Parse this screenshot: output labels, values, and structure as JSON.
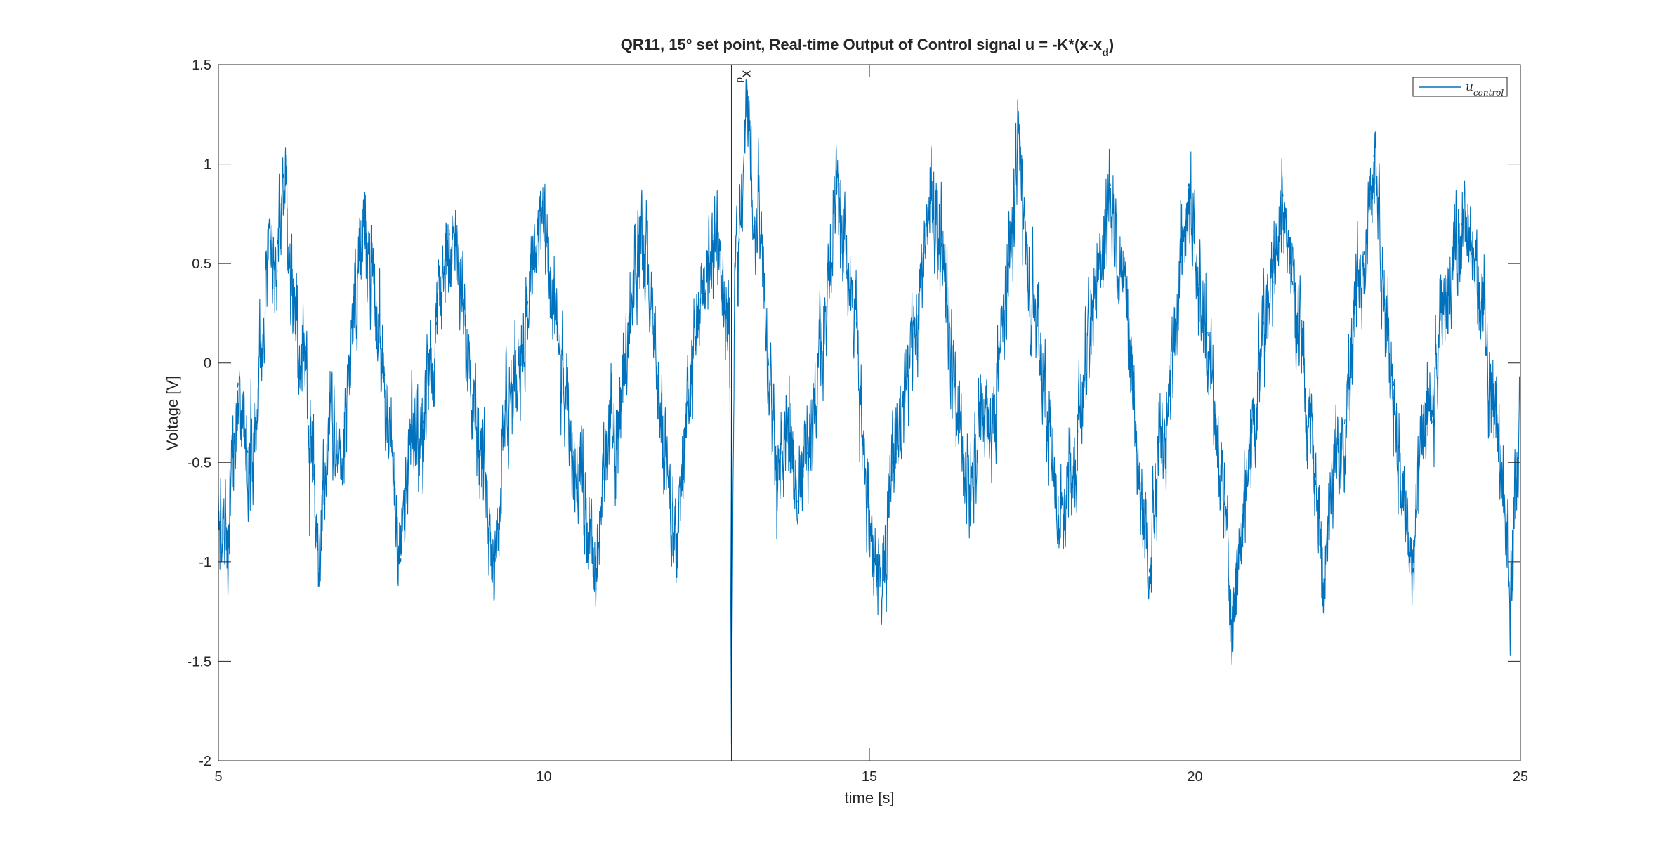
{
  "chart_data": {
    "type": "line",
    "title": "QR11, 15° set point, Real-time Output of Control signal u = -K*(x-x",
    "title_subscript": "d",
    "title_suffix": ")",
    "xlabel": "time [s]",
    "ylabel": "Voltage [V]",
    "xlim": [
      5,
      25
    ],
    "ylim": [
      -2,
      1.5
    ],
    "xticks": [
      5,
      10,
      15,
      20,
      25
    ],
    "xtick_labels": [
      "5",
      "10",
      "15",
      "20",
      "25"
    ],
    "yticks": [
      -2,
      -1.5,
      -1,
      -0.5,
      0,
      0.5,
      1,
      1.5
    ],
    "ytick_labels": [
      "-2",
      "-1.5",
      "-1",
      "-0.5",
      "0",
      "0.5",
      "1",
      "1.5"
    ],
    "grid": false,
    "legend_position": "top-right",
    "series": [
      {
        "name": "u",
        "name_subscript": "control",
        "color": "#0072BD",
        "anchors": [
          [
            5.0,
            -0.8
          ],
          [
            5.15,
            -0.95
          ],
          [
            5.3,
            -0.1
          ],
          [
            5.45,
            -0.45
          ],
          [
            5.6,
            -0.25
          ],
          [
            5.75,
            0.45
          ],
          [
            5.9,
            0.45
          ],
          [
            6.0,
            0.95
          ],
          [
            6.15,
            0.3
          ],
          [
            6.3,
            0.05
          ],
          [
            6.45,
            -0.55
          ],
          [
            6.55,
            -1.05
          ],
          [
            6.7,
            -0.3
          ],
          [
            6.9,
            -0.55
          ],
          [
            7.05,
            0.2
          ],
          [
            7.25,
            0.7
          ],
          [
            7.4,
            0.3
          ],
          [
            7.55,
            -0.05
          ],
          [
            7.7,
            -0.6
          ],
          [
            7.8,
            -1.0
          ],
          [
            7.95,
            -0.4
          ],
          [
            8.15,
            -0.3
          ],
          [
            8.35,
            0.2
          ],
          [
            8.55,
            0.65
          ],
          [
            8.75,
            0.3
          ],
          [
            8.95,
            -0.2
          ],
          [
            9.1,
            -0.6
          ],
          [
            9.25,
            -1.0
          ],
          [
            9.4,
            -0.3
          ],
          [
            9.55,
            -0.1
          ],
          [
            9.75,
            0.3
          ],
          [
            9.95,
            0.75
          ],
          [
            10.1,
            0.35
          ],
          [
            10.3,
            -0.15
          ],
          [
            10.45,
            -0.5
          ],
          [
            10.55,
            -0.5
          ],
          [
            10.7,
            -0.85
          ],
          [
            10.8,
            -1.15
          ],
          [
            10.95,
            -0.4
          ],
          [
            11.15,
            -0.3
          ],
          [
            11.3,
            0.2
          ],
          [
            11.45,
            0.6
          ],
          [
            11.6,
            0.45
          ],
          [
            11.8,
            -0.3
          ],
          [
            11.95,
            -0.8
          ],
          [
            12.05,
            -0.9
          ],
          [
            12.2,
            -0.2
          ],
          [
            12.4,
            0.25
          ],
          [
            12.6,
            0.6
          ],
          [
            12.75,
            0.45
          ],
          [
            12.85,
            0.15
          ],
          [
            12.88,
            -1.92
          ],
          [
            12.93,
            0.5
          ],
          [
            13.0,
            0.6
          ],
          [
            13.12,
            1.35
          ],
          [
            13.25,
            0.55
          ],
          [
            13.3,
            0.9
          ],
          [
            13.45,
            0.0
          ],
          [
            13.6,
            -0.5
          ],
          [
            13.75,
            -0.4
          ],
          [
            13.9,
            -0.7
          ],
          [
            14.05,
            -0.45
          ],
          [
            14.2,
            -0.1
          ],
          [
            14.35,
            0.3
          ],
          [
            14.5,
            0.9
          ],
          [
            14.65,
            0.45
          ],
          [
            14.8,
            0.2
          ],
          [
            14.9,
            -0.4
          ],
          [
            15.05,
            -0.9
          ],
          [
            15.2,
            -1.15
          ],
          [
            15.35,
            -0.5
          ],
          [
            15.5,
            -0.3
          ],
          [
            15.65,
            0.1
          ],
          [
            15.8,
            0.45
          ],
          [
            15.95,
            0.85
          ],
          [
            16.1,
            0.6
          ],
          [
            16.3,
            -0.1
          ],
          [
            16.45,
            -0.5
          ],
          [
            16.6,
            -0.7
          ],
          [
            16.7,
            -0.2
          ],
          [
            16.85,
            -0.4
          ],
          [
            17.0,
            0.05
          ],
          [
            17.15,
            0.5
          ],
          [
            17.3,
            1.2
          ],
          [
            17.4,
            0.5
          ],
          [
            17.55,
            0.3
          ],
          [
            17.75,
            -0.3
          ],
          [
            17.9,
            -0.8
          ],
          [
            18.05,
            -0.55
          ],
          [
            18.2,
            -0.35
          ],
          [
            18.4,
            0.2
          ],
          [
            18.55,
            0.55
          ],
          [
            18.7,
            0.9
          ],
          [
            18.85,
            0.5
          ],
          [
            19.0,
            0.05
          ],
          [
            19.15,
            -0.6
          ],
          [
            19.3,
            -1.05
          ],
          [
            19.45,
            -0.4
          ],
          [
            19.6,
            -0.2
          ],
          [
            19.75,
            0.35
          ],
          [
            19.9,
            0.9
          ],
          [
            20.05,
            0.4
          ],
          [
            20.2,
            0.15
          ],
          [
            20.35,
            -0.5
          ],
          [
            20.45,
            -0.7
          ],
          [
            20.6,
            -1.3
          ],
          [
            20.75,
            -0.7
          ],
          [
            20.9,
            -0.3
          ],
          [
            21.05,
            0.2
          ],
          [
            21.2,
            0.4
          ],
          [
            21.35,
            0.85
          ],
          [
            21.5,
            0.4
          ],
          [
            21.65,
            0.05
          ],
          [
            21.85,
            -0.6
          ],
          [
            22.0,
            -1.1
          ],
          [
            22.15,
            -0.5
          ],
          [
            22.3,
            -0.3
          ],
          [
            22.45,
            0.3
          ],
          [
            22.6,
            0.55
          ],
          [
            22.75,
            1.05
          ],
          [
            22.9,
            0.3
          ],
          [
            23.05,
            -0.1
          ],
          [
            23.2,
            -0.7
          ],
          [
            23.35,
            -1.05
          ],
          [
            23.5,
            -0.35
          ],
          [
            23.65,
            -0.3
          ],
          [
            23.8,
            0.25
          ],
          [
            23.95,
            0.5
          ],
          [
            24.1,
            0.7
          ],
          [
            24.25,
            0.55
          ],
          [
            24.4,
            0.3
          ],
          [
            24.55,
            -0.1
          ],
          [
            24.7,
            -0.45
          ],
          [
            24.85,
            -1.15
          ],
          [
            24.95,
            -0.55
          ],
          [
            25.0,
            -0.35
          ]
        ]
      }
    ],
    "annotation": {
      "type": "vertical-line",
      "x": 12.88,
      "label": "x",
      "label_subscript": "d"
    }
  }
}
